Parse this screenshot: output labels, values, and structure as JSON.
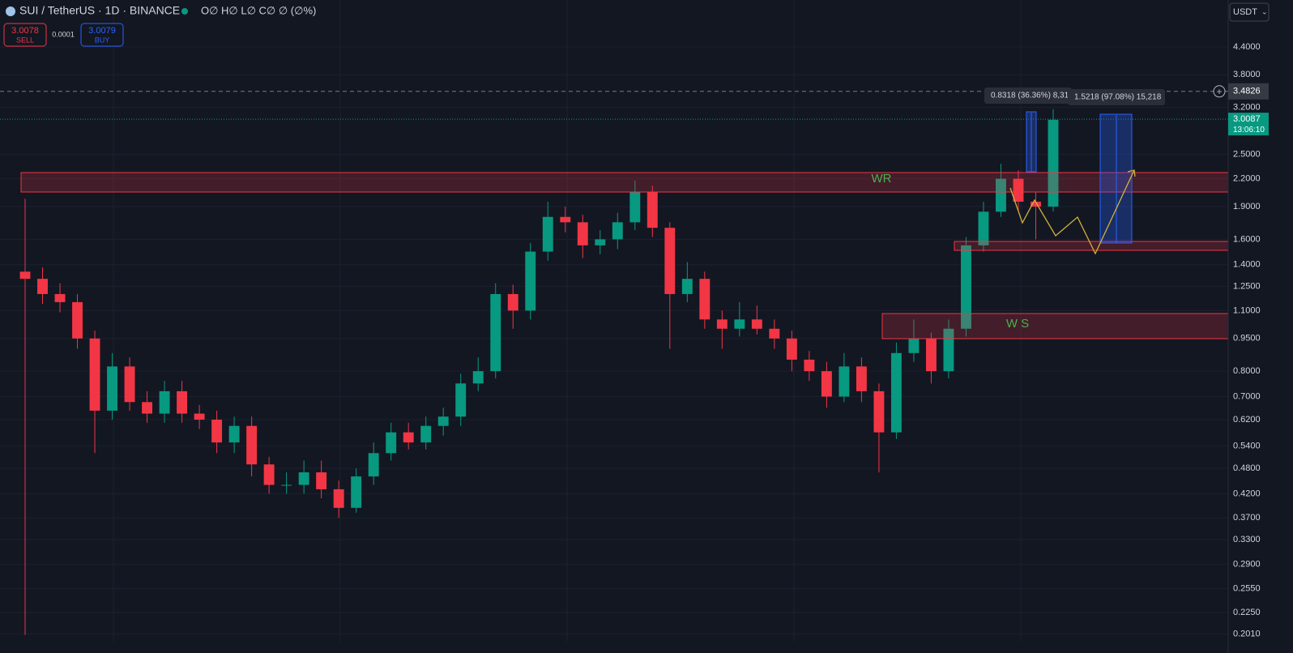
{
  "header": {
    "symbol": "SUI / TetherUS · 1D · BINANCE",
    "ohlc": "O∅ H∅ L∅ C∅ ∅ (∅%)"
  },
  "trade": {
    "sell_price": "3.0078",
    "sell": "SELL",
    "spread": "0.0001",
    "buy_price": "3.0079",
    "buy": "BUY"
  },
  "currency": "USDT",
  "chart_data": {
    "type": "candlestick",
    "log_scale": true,
    "ylim": [
      0.193,
      5.63
    ],
    "yticks": [
      {
        "value": 4.4,
        "label": "4.4000"
      },
      {
        "value": 3.8,
        "label": "3.8000"
      },
      {
        "value": 3.2,
        "label": "3.2000"
      },
      {
        "value": 2.5,
        "label": "2.5000"
      },
      {
        "value": 2.2,
        "label": "2.2000"
      },
      {
        "value": 1.9,
        "label": "1.9000"
      },
      {
        "value": 1.6,
        "label": "1.6000"
      },
      {
        "value": 1.4,
        "label": "1.4000"
      },
      {
        "value": 1.25,
        "label": "1.2500"
      },
      {
        "value": 1.1,
        "label": "1.1000"
      },
      {
        "value": 0.95,
        "label": "0.9500"
      },
      {
        "value": 0.8,
        "label": "0.8000"
      },
      {
        "value": 0.7,
        "label": "0.7000"
      },
      {
        "value": 0.62,
        "label": "0.6200"
      },
      {
        "value": 0.54,
        "label": "0.5400"
      },
      {
        "value": 0.48,
        "label": "0.4800"
      },
      {
        "value": 0.42,
        "label": "0.4200"
      },
      {
        "value": 0.37,
        "label": "0.3700"
      },
      {
        "value": 0.33,
        "label": "0.3300"
      },
      {
        "value": 0.29,
        "label": "0.2900"
      },
      {
        "value": 0.255,
        "label": "0.2550"
      },
      {
        "value": 0.225,
        "label": "0.2250"
      },
      {
        "value": 0.201,
        "label": "0.2010"
      }
    ],
    "open": [
      1.35,
      1.3,
      1.2,
      1.15,
      0.95,
      0.65,
      0.82,
      0.68,
      0.64,
      0.72,
      0.64,
      0.62,
      0.55,
      0.6,
      0.49,
      0.44,
      0.44,
      0.47,
      0.43,
      0.39,
      0.46,
      0.52,
      0.58,
      0.55,
      0.6,
      0.63,
      0.75,
      0.8,
      1.2,
      1.1,
      1.5,
      1.8,
      1.75,
      1.55,
      1.6,
      1.75,
      2.05,
      1.7,
      1.2,
      1.3,
      1.05,
      1.0,
      1.05,
      1.0,
      0.95,
      0.85,
      0.8,
      0.7,
      0.82,
      0.72,
      0.58,
      0.88,
      0.95,
      0.8,
      1.0,
      1.55,
      1.85,
      2.2,
      1.95,
      1.9
    ],
    "high": [
      1.98,
      1.38,
      1.27,
      1.2,
      0.99,
      0.88,
      0.86,
      0.72,
      0.76,
      0.76,
      0.67,
      0.65,
      0.63,
      0.63,
      0.51,
      0.47,
      0.5,
      0.5,
      0.45,
      0.48,
      0.55,
      0.61,
      0.61,
      0.63,
      0.66,
      0.79,
      0.86,
      1.27,
      1.26,
      1.57,
      1.95,
      1.9,
      1.82,
      1.68,
      1.84,
      2.18,
      2.12,
      1.75,
      1.42,
      1.35,
      1.1,
      1.15,
      1.13,
      1.05,
      0.99,
      0.89,
      0.84,
      0.88,
      0.86,
      0.75,
      0.93,
      1.05,
      0.98,
      1.05,
      1.62,
      1.95,
      2.38,
      2.3,
      2.05,
      3.17
    ],
    "low": [
      0.2,
      1.14,
      1.09,
      0.9,
      0.52,
      0.62,
      0.65,
      0.61,
      0.61,
      0.61,
      0.59,
      0.52,
      0.52,
      0.46,
      0.42,
      0.42,
      0.42,
      0.41,
      0.37,
      0.38,
      0.44,
      0.5,
      0.53,
      0.53,
      0.57,
      0.6,
      0.72,
      0.77,
      1.0,
      1.05,
      1.43,
      1.66,
      1.45,
      1.48,
      1.52,
      1.68,
      1.62,
      0.9,
      1.15,
      1.0,
      0.9,
      0.96,
      0.97,
      0.9,
      0.8,
      0.76,
      0.66,
      0.68,
      0.68,
      0.47,
      0.56,
      0.84,
      0.75,
      0.77,
      0.96,
      1.5,
      1.8,
      1.85,
      1.6,
      1.85
    ],
    "close": [
      1.3,
      1.2,
      1.15,
      0.95,
      0.65,
      0.82,
      0.68,
      0.64,
      0.72,
      0.64,
      0.62,
      0.55,
      0.6,
      0.49,
      0.44,
      0.44,
      0.47,
      0.43,
      0.39,
      0.46,
      0.52,
      0.58,
      0.55,
      0.6,
      0.63,
      0.75,
      0.8,
      1.2,
      1.1,
      1.5,
      1.8,
      1.75,
      1.55,
      1.6,
      1.75,
      2.05,
      1.7,
      1.2,
      1.3,
      1.05,
      1.0,
      1.05,
      1.0,
      0.95,
      0.85,
      0.8,
      0.7,
      0.82,
      0.72,
      0.58,
      0.88,
      0.95,
      0.8,
      1.0,
      1.55,
      1.85,
      2.2,
      1.95,
      1.9,
      3.0
    ],
    "up_color": "#089981",
    "down_color": "#f23645",
    "last_price": 3.0087,
    "countdown": "13:06:10",
    "crosshair_price": 3.4826,
    "annotations": [
      "WR",
      "W S"
    ],
    "measures": [
      "0.8318 (36.36%) 8,31",
      "1.5218 (97.08%) 15,218"
    ]
  }
}
